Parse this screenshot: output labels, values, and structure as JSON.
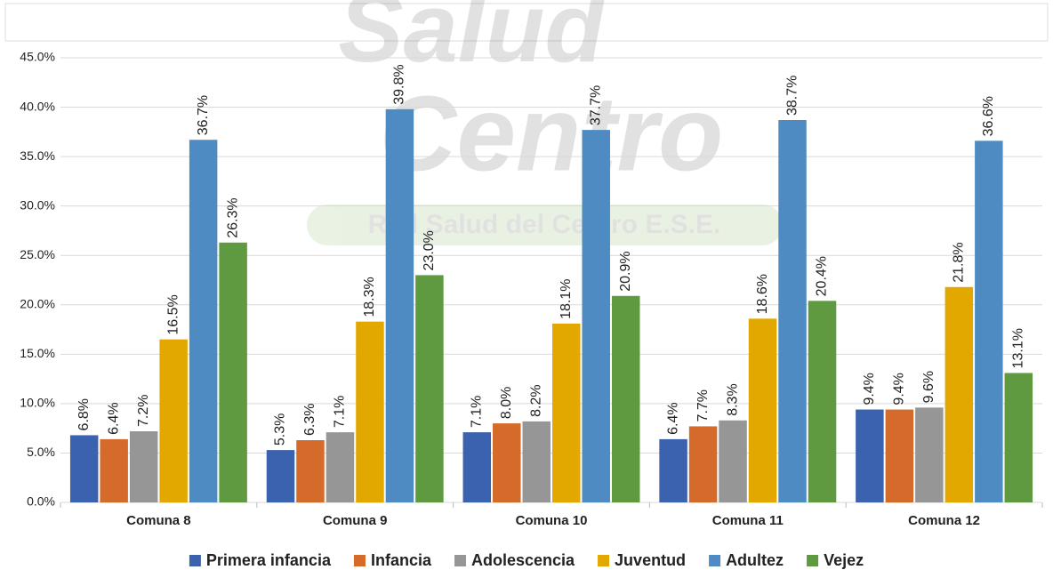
{
  "chart_data": {
    "type": "bar",
    "watermark": [
      "Salud",
      "Centro",
      "Red Salud del Centro E.S.E."
    ],
    "categories": [
      "Comuna 8",
      "Comuna 9",
      "Comuna 10",
      "Comuna 11",
      "Comuna 12"
    ],
    "series": [
      {
        "name": "Primera infancia",
        "color": "#3a62ae",
        "values": [
          6.8,
          5.3,
          7.1,
          6.4,
          9.4
        ],
        "value_labels": [
          "6.8%",
          "5.3%",
          "7.1%",
          "6.4%",
          "9.4%"
        ]
      },
      {
        "name": "Infancia",
        "color": "#d46b2a",
        "values": [
          6.4,
          6.3,
          8.0,
          7.7,
          9.4
        ],
        "value_labels": [
          "6.4%",
          "6.3%",
          "8.0%",
          "7.7%",
          "9.4%"
        ]
      },
      {
        "name": "Adolescencia",
        "color": "#969696",
        "values": [
          7.2,
          7.1,
          8.2,
          8.3,
          9.6
        ],
        "value_labels": [
          "7.2%",
          "7.1%",
          "8.2%",
          "8.3%",
          "9.6%"
        ]
      },
      {
        "name": "Juventud",
        "color": "#e2a800",
        "values": [
          16.5,
          18.3,
          18.1,
          18.6,
          21.8
        ],
        "value_labels": [
          "16.5%",
          "18.3%",
          "18.1%",
          "18.6%",
          "21.8%"
        ]
      },
      {
        "name": "Adultez",
        "color": "#4e8bc2",
        "values": [
          36.7,
          39.8,
          37.7,
          38.7,
          36.6
        ],
        "value_labels": [
          "36.7%",
          "39.8%",
          "37.7%",
          "38.7%",
          "36.6%"
        ]
      },
      {
        "name": "Vejez",
        "color": "#5f9a40",
        "values": [
          26.3,
          23.0,
          20.9,
          20.4,
          13.1
        ],
        "value_labels": [
          "26.3%",
          "23.0%",
          "20.9%",
          "20.4%",
          "13.1%"
        ]
      }
    ],
    "ylim": [
      0,
      45
    ],
    "yticks": [
      {
        "value": 0,
        "label": "0.0%"
      },
      {
        "value": 5,
        "label": "5.0%"
      },
      {
        "value": 10,
        "label": "10.0%"
      },
      {
        "value": 15,
        "label": "15.0%"
      },
      {
        "value": 20,
        "label": "20.0%"
      },
      {
        "value": 25,
        "label": "25.0%"
      },
      {
        "value": 30,
        "label": "30.0%"
      },
      {
        "value": 35,
        "label": "35.0%"
      },
      {
        "value": 40,
        "label": "40.0%"
      },
      {
        "value": 45,
        "label": "45.0%"
      }
    ],
    "grid": true,
    "legend": "bottom"
  }
}
